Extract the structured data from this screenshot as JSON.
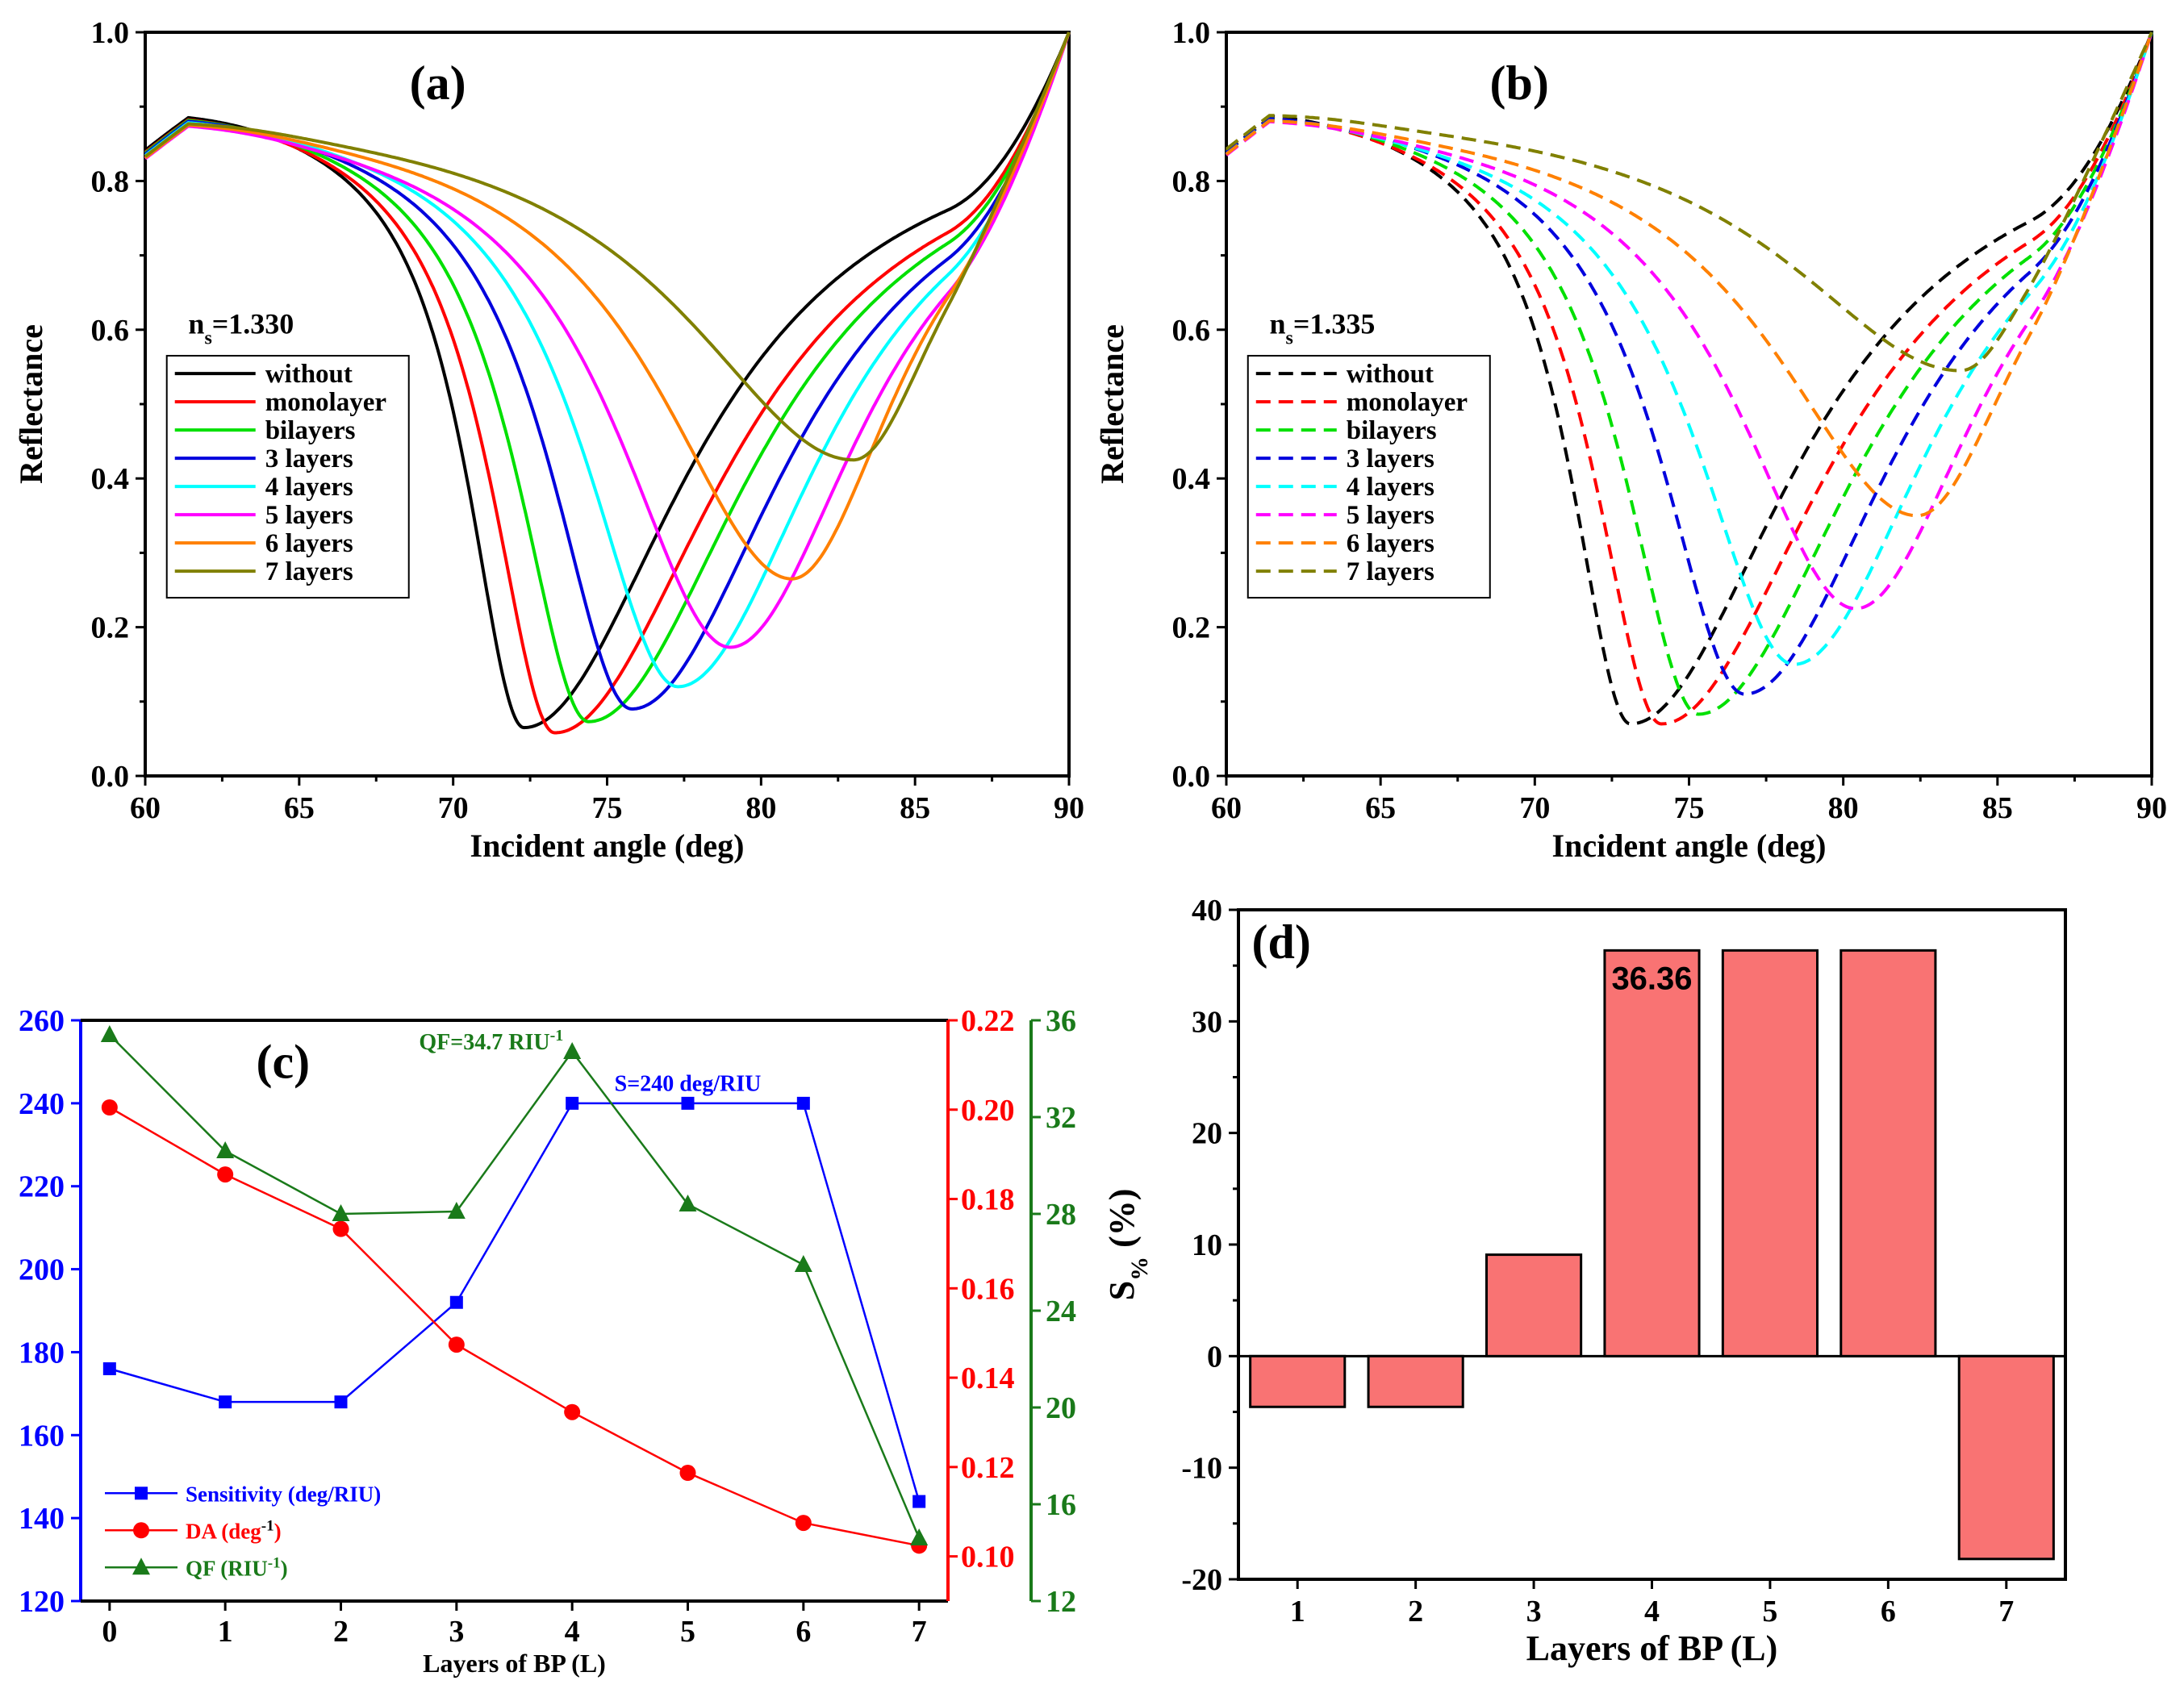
{
  "chart_data": [
    {
      "id": "a",
      "type": "line",
      "panel_label": "(a)",
      "xlabel": "Incident angle (deg)",
      "ylabel": "Reflectance",
      "xlim": [
        60,
        90
      ],
      "ylim": [
        0.0,
        1.0
      ],
      "xticks": [
        "60",
        "65",
        "70",
        "75",
        "80",
        "85",
        "90"
      ],
      "yticks": [
        "0.0",
        "0.2",
        "0.4",
        "0.6",
        "0.8",
        "1.0"
      ],
      "annotation": {
        "n": "n",
        "sub": "s",
        "rest": "=1.330"
      },
      "line_style": "solid",
      "series": [
        {
          "name": "without",
          "color": "#000000",
          "dip_angle": 72.3,
          "dip_min": 0.065,
          "left_hw": 2.3,
          "right_hw": 6.5
        },
        {
          "name": "monolayer",
          "color": "#ff0000",
          "dip_angle": 73.3,
          "dip_min": 0.058,
          "left_hw": 2.6,
          "right_hw": 6.7
        },
        {
          "name": "bilayers",
          "color": "#00e000",
          "dip_angle": 74.4,
          "dip_min": 0.073,
          "left_hw": 2.9,
          "right_hw": 6.5
        },
        {
          "name": "3 layers",
          "color": "#0000dd",
          "dip_angle": 75.8,
          "dip_min": 0.09,
          "left_hw": 3.3,
          "right_hw": 6.2
        },
        {
          "name": "4 layers",
          "color": "#00ffff",
          "dip_angle": 77.3,
          "dip_min": 0.12,
          "left_hw": 3.8,
          "right_hw": 5.8
        },
        {
          "name": "5 layers",
          "color": "#ff00ff",
          "dip_angle": 79.0,
          "dip_min": 0.173,
          "left_hw": 4.6,
          "right_hw": 5.3
        },
        {
          "name": "6 layers",
          "color": "#ff8000",
          "dip_angle": 81.0,
          "dip_min": 0.265,
          "left_hw": 5.4,
          "right_hw": 4.3
        },
        {
          "name": "7 layers",
          "color": "#808000",
          "dip_angle": 83.0,
          "dip_min": 0.425,
          "left_hw": 6.8,
          "right_hw": 3.6
        }
      ]
    },
    {
      "id": "b",
      "type": "line",
      "panel_label": "(b)",
      "xlabel": "Incident angle (deg)",
      "ylabel": "Reflectance",
      "xlim": [
        60,
        90
      ],
      "ylim": [
        0.0,
        1.0
      ],
      "xticks": [
        "60",
        "65",
        "70",
        "75",
        "80",
        "85",
        "90"
      ],
      "yticks": [
        "0.0",
        "0.2",
        "0.4",
        "0.6",
        "0.8",
        "1.0"
      ],
      "annotation": {
        "n": "n",
        "sub": "s",
        "rest": "=1.335"
      },
      "line_style": "dashed",
      "series": [
        {
          "name": "without",
          "color": "#000000",
          "dip_angle": 73.1,
          "dip_min": 0.07,
          "left_hw": 2.4,
          "right_hw": 6.5
        },
        {
          "name": "monolayer",
          "color": "#ff0000",
          "dip_angle": 74.1,
          "dip_min": 0.07,
          "left_hw": 2.7,
          "right_hw": 6.6
        },
        {
          "name": "bilayers",
          "color": "#00e000",
          "dip_angle": 75.3,
          "dip_min": 0.083,
          "left_hw": 3.0,
          "right_hw": 6.4
        },
        {
          "name": "3 layers",
          "color": "#0000dd",
          "dip_angle": 76.8,
          "dip_min": 0.11,
          "left_hw": 3.4,
          "right_hw": 6.0
        },
        {
          "name": "4 layers",
          "color": "#00ffff",
          "dip_angle": 78.4,
          "dip_min": 0.15,
          "left_hw": 4.0,
          "right_hw": 5.6
        },
        {
          "name": "5 layers",
          "color": "#ff00ff",
          "dip_angle": 80.4,
          "dip_min": 0.225,
          "left_hw": 4.8,
          "right_hw": 5.0
        },
        {
          "name": "6 layers",
          "color": "#ff8000",
          "dip_angle": 82.4,
          "dip_min": 0.35,
          "left_hw": 5.8,
          "right_hw": 4.2
        },
        {
          "name": "7 layers",
          "color": "#808000",
          "dip_angle": 83.8,
          "dip_min": 0.545,
          "left_hw": 7.0,
          "right_hw": 3.4
        }
      ]
    },
    {
      "id": "c",
      "type": "line",
      "panel_label": "(c)",
      "xlabel": "Layers of BP (L)",
      "x": [
        0,
        1,
        2,
        3,
        4,
        5,
        6,
        7
      ],
      "xticks": [
        "0",
        "1",
        "2",
        "3",
        "4",
        "5",
        "6",
        "7"
      ],
      "xlim": [
        -0.25,
        7.25
      ],
      "axes": {
        "left": {
          "ylim": [
            120,
            260
          ],
          "ticks": [
            "120",
            "140",
            "160",
            "180",
            "200",
            "220",
            "240",
            "260"
          ],
          "color": "#0000ff"
        },
        "right1": {
          "ylim": [
            0.09,
            0.22
          ],
          "ticks": [
            "0.10",
            "0.12",
            "0.14",
            "0.16",
            "0.18",
            "0.20",
            "0.22"
          ],
          "color": "#ff0000"
        },
        "right2": {
          "ylim": [
            12,
            36
          ],
          "ticks": [
            "12",
            "16",
            "20",
            "24",
            "28",
            "32",
            "36"
          ],
          "color": "#1a7a1a"
        }
      },
      "series": [
        {
          "name": "Sensitivity (deg/RIU)",
          "label_main": "Sensitivity (deg/RIU)",
          "label_sup": "",
          "label_tail": "",
          "axis": "left",
          "color": "#0000ff",
          "marker": "square",
          "values": [
            176,
            168,
            168,
            192,
            240,
            240,
            240,
            144
          ]
        },
        {
          "name": "DA (deg-1)",
          "label_main": "DA (deg",
          "label_sup": "-1",
          "label_tail": ")",
          "axis": "right1",
          "color": "#ff0000",
          "marker": "circle",
          "values": [
            0.2005,
            0.1855,
            0.1733,
            0.1474,
            0.1323,
            0.1187,
            0.1075,
            0.1024
          ]
        },
        {
          "name": "QF (RIU-1)",
          "label_main": "QF (RIU",
          "label_sup": "-1",
          "label_tail": ")",
          "axis": "right2",
          "color": "#1a7a1a",
          "marker": "triangle",
          "values": [
            35.4,
            30.6,
            28.0,
            28.1,
            34.7,
            28.4,
            25.9,
            14.6
          ]
        }
      ],
      "annotations": {
        "qf": {
          "main": "QF=34.7 RIU",
          "sup": "-1"
        },
        "s": "S=240 deg/RIU"
      }
    },
    {
      "id": "d",
      "type": "bar",
      "panel_label": "(d)",
      "xlabel": "Layers of BP (L)",
      "ylabel_main": "S",
      "ylabel_sub": "%",
      "ylabel_rest": " (%)",
      "categories": [
        "1",
        "2",
        "3",
        "4",
        "5",
        "6",
        "7"
      ],
      "values": [
        -4.55,
        -4.55,
        9.09,
        36.36,
        36.36,
        36.36,
        -18.18
      ],
      "bar_color": "#f97373",
      "ylim": [
        -20,
        40
      ],
      "yticks": [
        "-20",
        "-10",
        "0",
        "10",
        "20",
        "30",
        "40"
      ],
      "value_label": "36.36"
    }
  ]
}
